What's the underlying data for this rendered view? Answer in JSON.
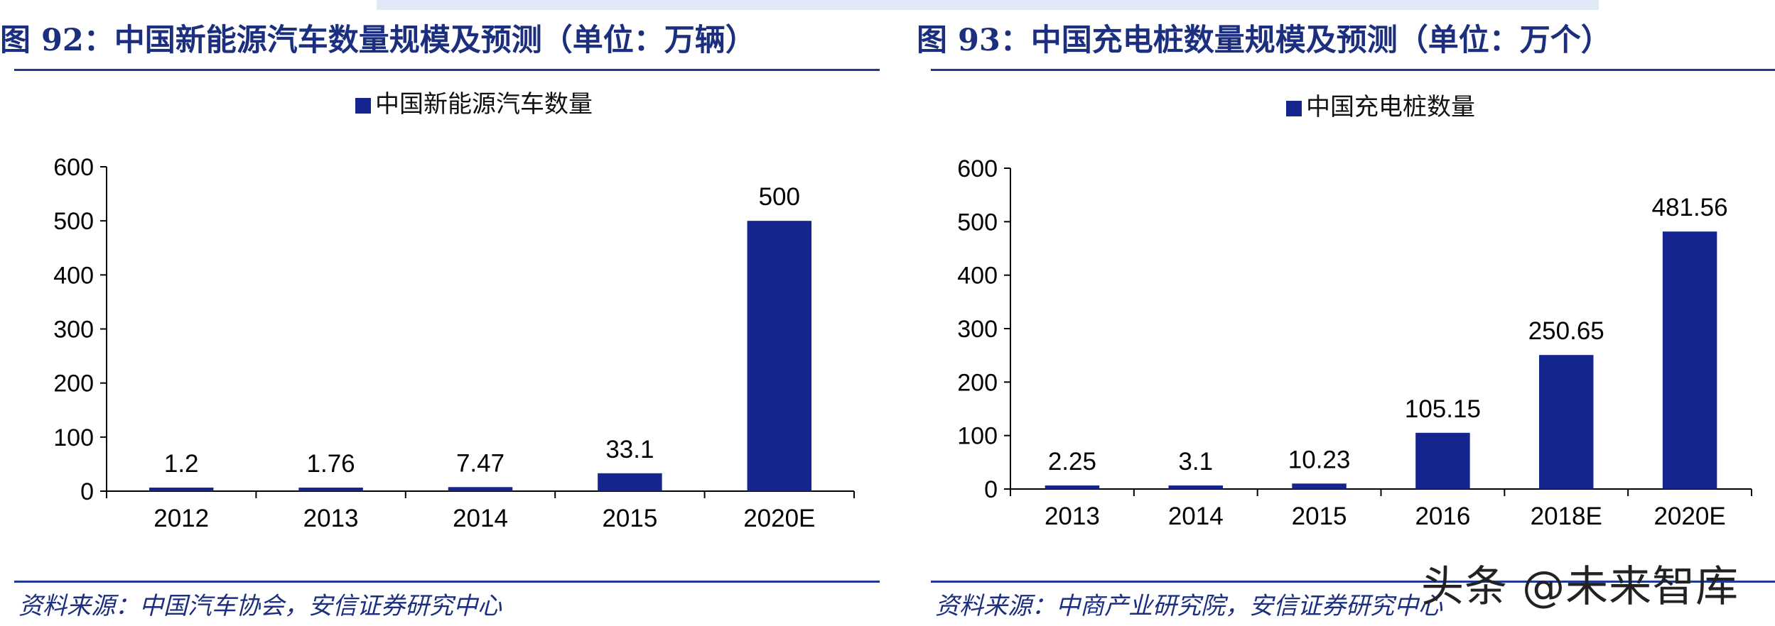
{
  "colors": {
    "bar": "#14258f",
    "title": "#1b2f7e",
    "axis": "#000000"
  },
  "chart_data": [
    {
      "type": "bar",
      "title": "图 92：中国新能源汽车数量规模及预测（单位：万辆）",
      "source": "资料来源：中国汽车协会，安信证券研究中心",
      "categories": [
        "2012",
        "2013",
        "2014",
        "2015",
        "2020E"
      ],
      "series": [
        {
          "name": "中国新能源汽车数量",
          "values": [
            1.2,
            1.76,
            7.47,
            33.1,
            500
          ]
        }
      ],
      "data_labels": [
        "1.2",
        "1.76",
        "7.47",
        "33.1",
        "500"
      ],
      "ylim": [
        0,
        600
      ],
      "yticks": [
        "0",
        "100",
        "200",
        "300",
        "400",
        "500",
        "600"
      ],
      "legend": "top-center",
      "grid": false
    },
    {
      "type": "bar",
      "title": "图 93：中国充电桩数量规模及预测（单位：万个）",
      "source": "资料来源：中商产业研究院，安信证券研究中心",
      "categories": [
        "2013",
        "2014",
        "2015",
        "2016",
        "2018E",
        "2020E"
      ],
      "series": [
        {
          "name": "中国充电桩数量",
          "values": [
            2.25,
            3.1,
            10.23,
            105.15,
            250.65,
            481.56
          ]
        }
      ],
      "data_labels": [
        "2.25",
        "3.1",
        "10.23",
        "105.15",
        "250.65",
        "481.56"
      ],
      "ylim": [
        0,
        600
      ],
      "yticks": [
        "0",
        "100",
        "200",
        "300",
        "400",
        "500",
        "600"
      ],
      "legend": "top-center",
      "grid": false
    }
  ],
  "watermark": "头条 @未来智库"
}
